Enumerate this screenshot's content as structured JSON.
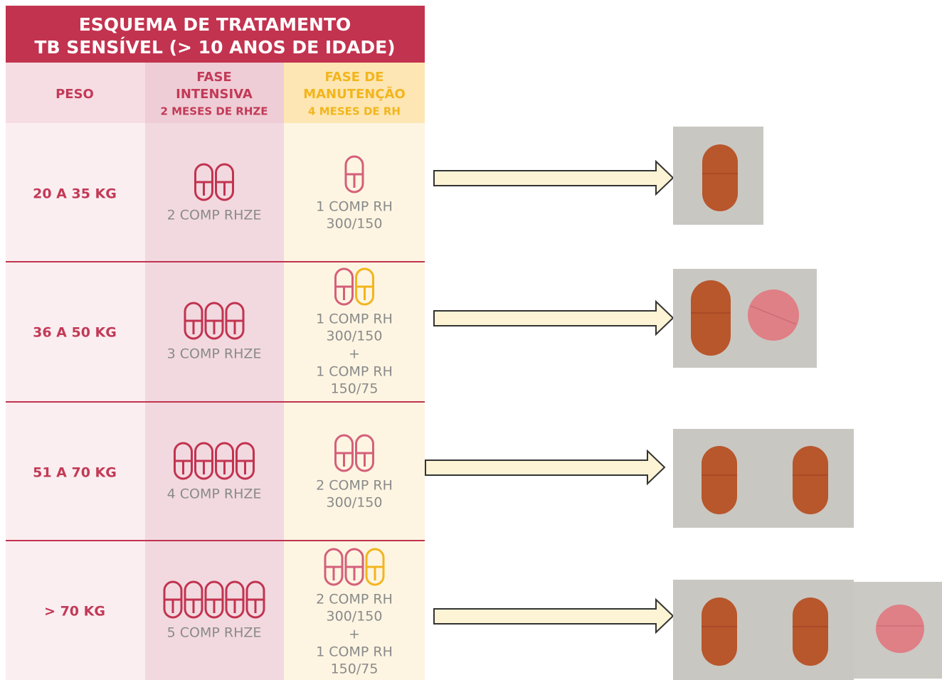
{
  "header": {
    "title_lines": [
      "ESQUEMA DE TRATAMENTO",
      "TB SENSÍVEL (> 10 ANOS DE IDADE)"
    ]
  },
  "table": {
    "columns": [
      {
        "title_lines": [
          "PESO"
        ]
      },
      {
        "title_lines": [
          "FASE",
          "INTENSIVA"
        ],
        "subtitle": "2 MESES DE RHZE"
      },
      {
        "title_lines": [
          "FASE DE",
          "MANUTENÇÃO"
        ],
        "subtitle": "4 MESES DE RH"
      }
    ],
    "rows": [
      {
        "weight": "20 A 35 KG",
        "intensive": "2 COMP RHZE",
        "maintenance": [
          "1 COMP RH",
          "300/150"
        ]
      },
      {
        "weight": "36 A 50 KG",
        "intensive": "3 COMP RHZE",
        "maintenance": [
          "1 COMP RH",
          "300/150",
          "+",
          "1 COMP RH",
          "150/75"
        ]
      },
      {
        "weight": "51 A 70 KG",
        "intensive": "4 COMP RHZE",
        "maintenance": [
          "2 COMP RH",
          "300/150"
        ]
      },
      {
        "weight": "> 70 KG",
        "intensive": "5 COMP RHZE",
        "maintenance": [
          "2 COMP RH",
          "300/150",
          "+",
          "1 COMP RH",
          "150/75"
        ]
      }
    ]
  }
}
